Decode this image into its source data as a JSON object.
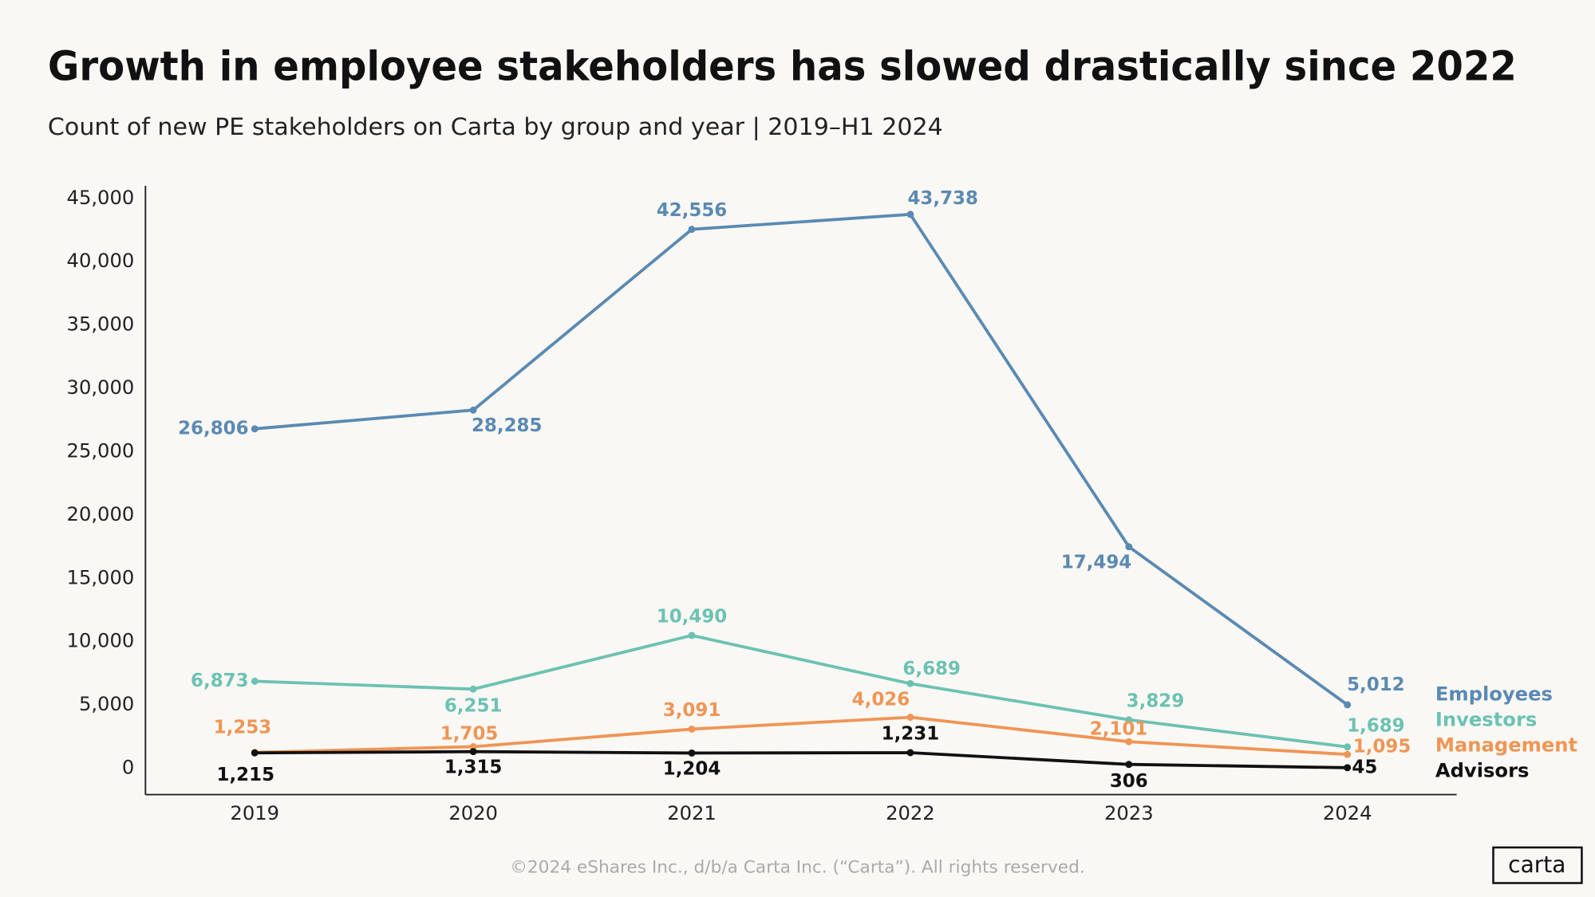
{
  "chart_data": {
    "type": "line",
    "title": "Growth in employee stakeholders has slowed drastically since 2022",
    "subtitle": "Count of new PE stakeholders on Carta by group and year | 2019–H1 2024",
    "categories": [
      "2019",
      "2020",
      "2021",
      "2022",
      "2023",
      "2024"
    ],
    "series": [
      {
        "name": "Employees",
        "color": "#5a8ab3",
        "values": [
          26806,
          28285,
          42556,
          43738,
          17494,
          5012
        ],
        "value_labels": [
          "26,806",
          "28,285",
          "42,556",
          "43,738",
          "17,494",
          "5,012"
        ]
      },
      {
        "name": "Investors",
        "color": "#6cc2b3",
        "values": [
          6873,
          6251,
          10490,
          6689,
          3829,
          1689
        ],
        "value_labels": [
          "6,873",
          "6,251",
          "10,490",
          "6,689",
          "3,829",
          "1,689"
        ]
      },
      {
        "name": "Management",
        "color": "#ef9555",
        "values": [
          1253,
          1705,
          3091,
          4026,
          2101,
          1095
        ],
        "value_labels": [
          "1,253",
          "1,705",
          "3,091",
          "4,026",
          "2,101",
          "1,095"
        ]
      },
      {
        "name": "Advisors",
        "color": "#111111",
        "values": [
          1215,
          1315,
          1204,
          1231,
          306,
          45
        ],
        "value_labels": [
          "1,215",
          "1,315",
          "1,204",
          "1,231",
          "306",
          "45"
        ]
      }
    ],
    "ylim": [
      -2000,
      46000
    ],
    "yticks": [
      0,
      {
        "value": 5000,
        "label": "5,000"
      },
      {
        "value": 10000,
        "label": "10,000"
      },
      {
        "value": 15000,
        "label": "15,000"
      },
      {
        "value": 20000,
        "label": "20,000"
      },
      {
        "value": 25000,
        "label": "25,000"
      },
      {
        "value": 30000,
        "label": "30,000"
      },
      {
        "value": 35000,
        "label": "35,000"
      },
      {
        "value": 40000,
        "label": "40,000"
      },
      {
        "value": 45000,
        "label": "45,000"
      }
    ],
    "grid": false,
    "legend": "right",
    "footer": "©2024 eShares Inc., d/b/a Carta Inc. (“Carta”). All rights reserved.",
    "logo": "carta"
  }
}
